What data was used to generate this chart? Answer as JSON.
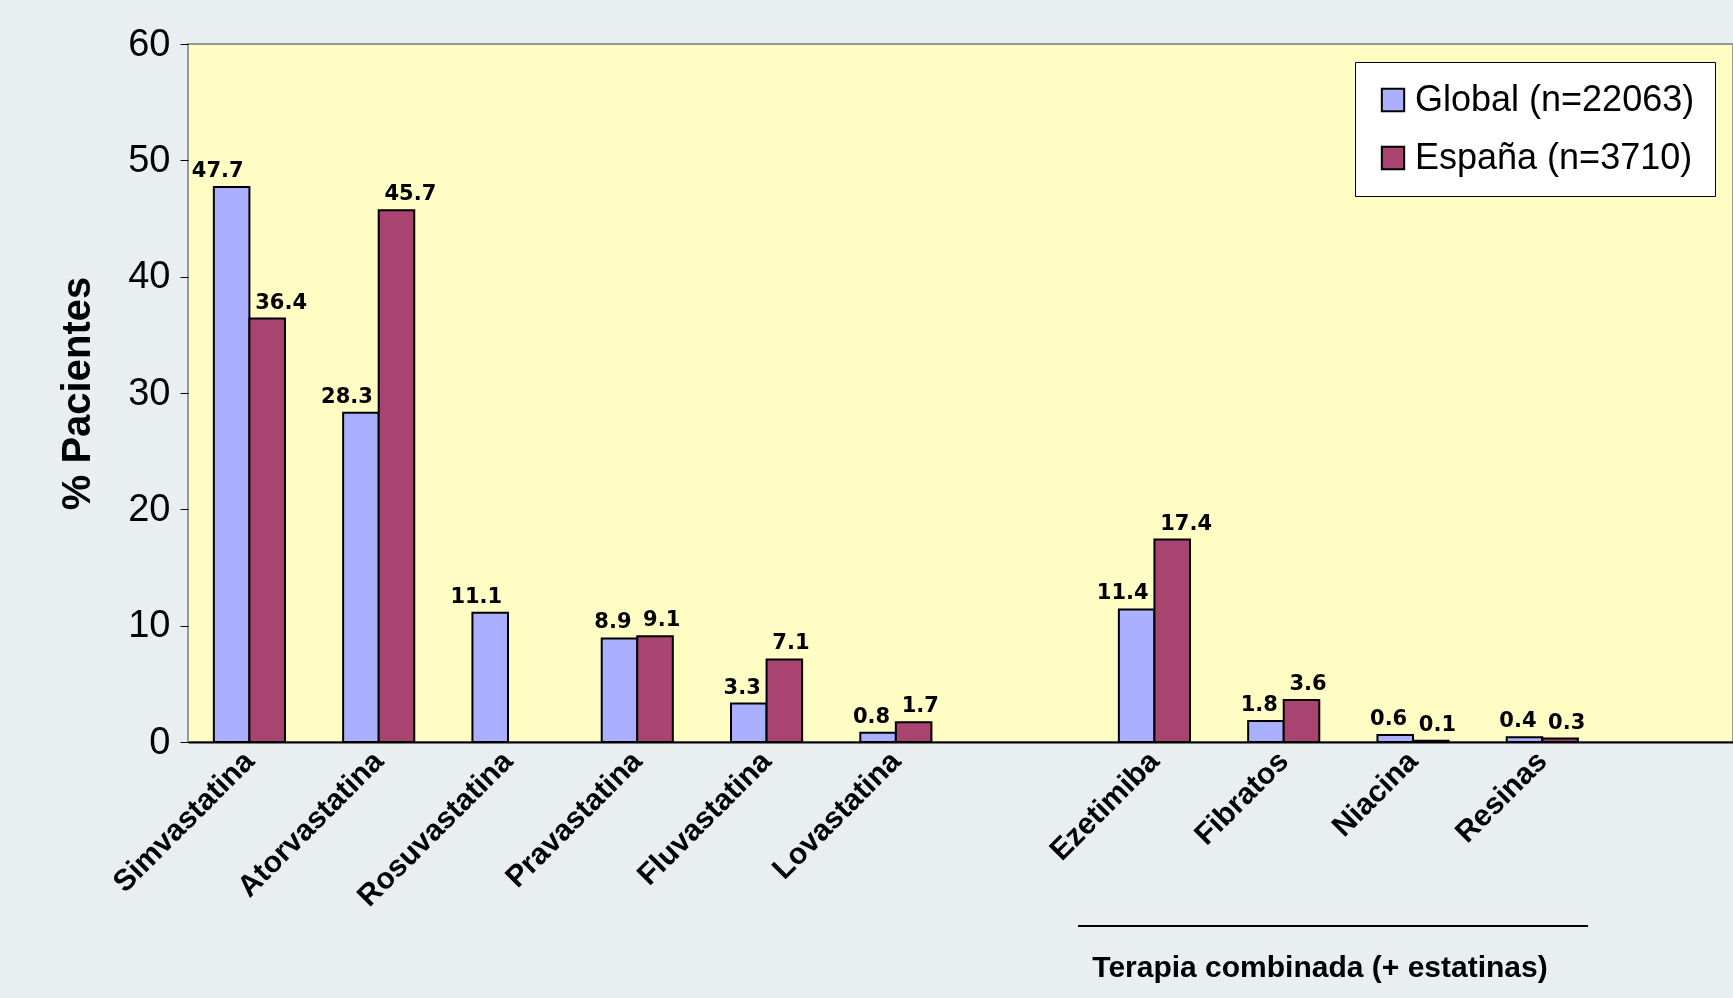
{
  "chart_data": {
    "type": "bar",
    "ylabel": "% Pacientes",
    "categories": [
      "Simvastatina",
      "Atorvastatina",
      "Rosuvastatina",
      "Pravastatina",
      "Fluvastatina",
      "Lovastatina",
      null,
      "Ezetimiba",
      "Fibratos",
      "Niacina",
      "Resinas",
      null
    ],
    "series": [
      {
        "name": "Global (n=22063)",
        "color": "#aab0ff",
        "values": [
          47.7,
          28.3,
          11.1,
          8.9,
          3.3,
          0.8,
          null,
          11.4,
          1.8,
          0.6,
          0.4,
          null
        ]
      },
      {
        "name": "España (n=3710)",
        "color": "#a8446f",
        "values": [
          36.4,
          45.7,
          null,
          9.1,
          7.1,
          1.7,
          null,
          17.4,
          3.6,
          0.1,
          0.3,
          null
        ]
      }
    ],
    "ylim": [
      0,
      60
    ],
    "yticks": [
      0,
      10,
      20,
      30,
      40,
      50,
      60
    ],
    "grid": false,
    "legend": "top right",
    "data_labels": true,
    "annotations": [
      "Terapia combinada (+ estatinas)"
    ]
  }
}
